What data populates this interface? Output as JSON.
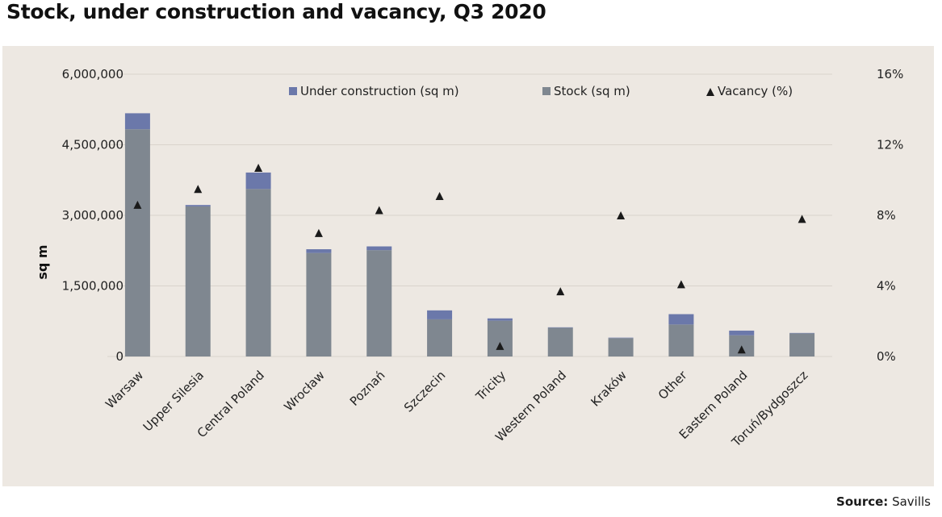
{
  "title": "Stock, under construction and vacancy, Q3 2020",
  "source": {
    "label": "Source:",
    "value": "Savills"
  },
  "chart_data": {
    "type": "bar",
    "stacked": true,
    "title": "Stock, under construction and vacancy, Q3 2020",
    "ylabel": "sq m",
    "y2label": "",
    "ylim": [
      0,
      6000000
    ],
    "y2lim": [
      0,
      16
    ],
    "yticks": [
      "0",
      "1,500,000",
      "3,000,000",
      "4,500,000",
      "6,000,000"
    ],
    "y2ticks": [
      "0%",
      "4%",
      "8%",
      "12%",
      "16%"
    ],
    "categories": [
      "Warsaw",
      "Upper Silesia",
      "Central Poland",
      "Wrocław",
      "Poznań",
      "Szczecin",
      "Tricity",
      "Western Poland",
      "Kraków",
      "Other",
      "Eastern Poland",
      "Toruń/Bydgoszcz"
    ],
    "series": [
      {
        "name": "Stock (sq m)",
        "axis": "left",
        "kind": "bar",
        "color": "#7f8790",
        "values": [
          4830000,
          3190000,
          3560000,
          2200000,
          2260000,
          790000,
          760000,
          610000,
          390000,
          680000,
          450000,
          490000
        ]
      },
      {
        "name": "Under construction (sq m)",
        "axis": "left",
        "kind": "bar",
        "color": "#6b78aa",
        "values": [
          340000,
          30000,
          350000,
          80000,
          80000,
          190000,
          50000,
          10000,
          10000,
          220000,
          100000,
          10000
        ]
      },
      {
        "name": "Vacancy (%)",
        "axis": "right",
        "kind": "marker",
        "color": "#1a1a1a",
        "values": [
          8.6,
          9.5,
          10.7,
          7.0,
          8.3,
          9.1,
          0.6,
          3.7,
          8.0,
          4.1,
          0.4,
          7.8
        ]
      }
    ],
    "legend": [
      {
        "label": "Under construction (sq m)",
        "marker": "square",
        "color": "#6b78aa"
      },
      {
        "label": "Stock (sq m)",
        "marker": "square",
        "color": "#7f8790"
      },
      {
        "label": "Vacancy (%)",
        "marker": "triangle",
        "color": "#1a1a1a"
      }
    ],
    "legend_position": "top",
    "grid": true
  }
}
